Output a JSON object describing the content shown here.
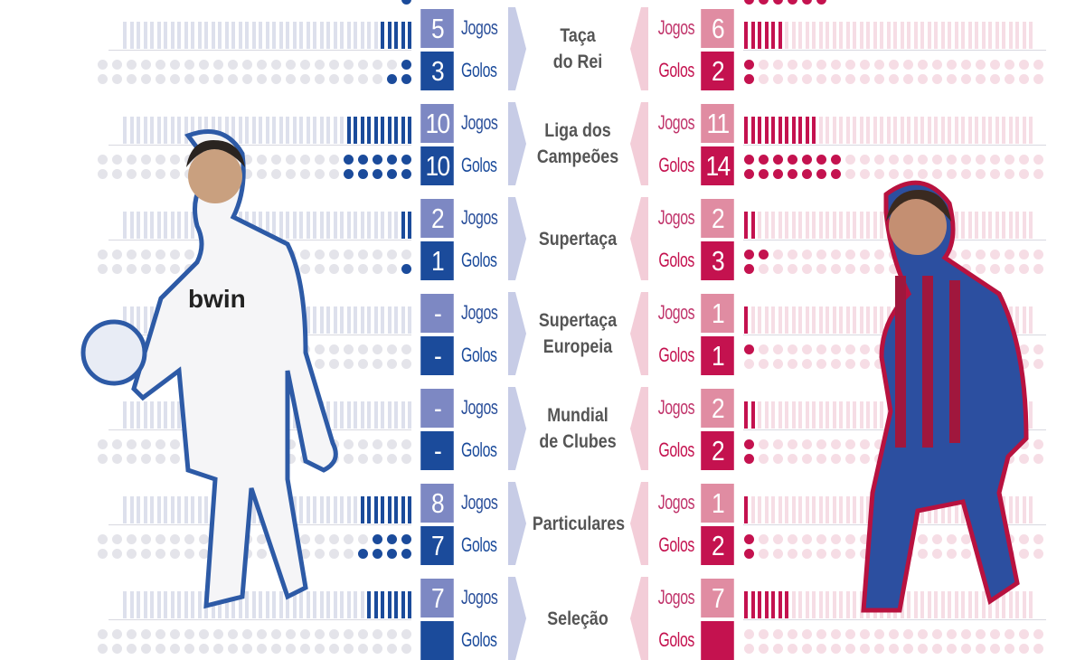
{
  "colors": {
    "blue_light": "#7d88c3",
    "blue_dark": "#1b4b9b",
    "blue_text": "#2a4f9a",
    "blue_faint": "#dde0ec",
    "pink_light": "#e08ca2",
    "pink_dark": "#c4124f",
    "pink_text": "#c0336a",
    "pink_faint": "#f6dde5",
    "dot_faint": "#e4e4ea",
    "center_text": "#555555"
  },
  "labels": {
    "jogos": "Jogos",
    "golos": "Golos"
  },
  "players": {
    "left": {
      "shirt_sponsor": "bwin",
      "kit": "white"
    },
    "right": {
      "kit": "blue-red stripes"
    }
  },
  "chart_data": {
    "type": "table",
    "categories": [
      {
        "lines": [
          "Taça",
          "do Rei"
        ]
      },
      {
        "lines": [
          "Liga dos",
          "Campeões"
        ]
      },
      {
        "lines": [
          "Supertaça"
        ]
      },
      {
        "lines": [
          "Supertaça",
          "Europeia"
        ]
      },
      {
        "lines": [
          "Mundial",
          "de Clubes"
        ]
      },
      {
        "lines": [
          "Particulares"
        ]
      },
      {
        "lines": [
          "Seleção"
        ]
      }
    ],
    "series": [
      {
        "side": "left",
        "jogos": [
          "5",
          "10",
          "2",
          "-",
          "-",
          "8",
          "7"
        ],
        "golos": [
          "3",
          "10",
          "1",
          "-",
          "-",
          "7",
          ""
        ]
      },
      {
        "side": "right",
        "jogos": [
          "6",
          "11",
          "2",
          "1",
          "2",
          "1",
          "7"
        ],
        "golos": [
          "2",
          "14",
          "3",
          "1",
          "2",
          "2",
          ""
        ]
      }
    ]
  }
}
